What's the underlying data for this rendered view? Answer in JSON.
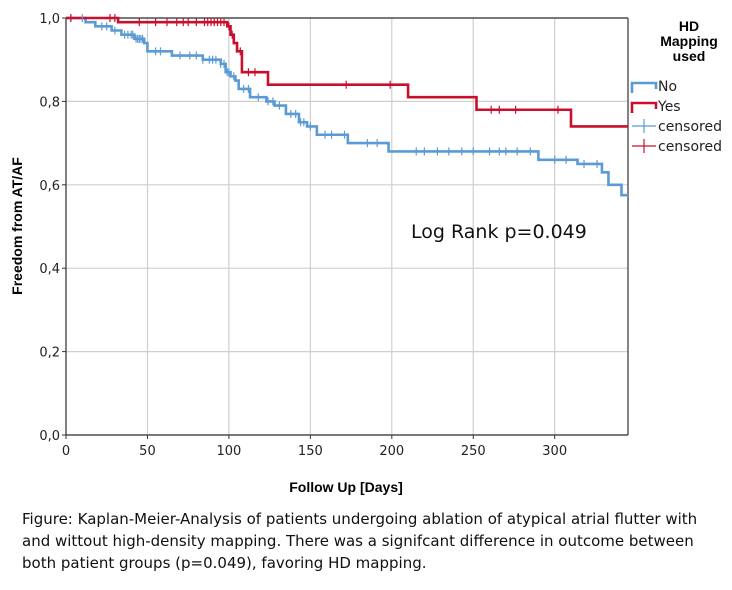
{
  "caption": "Figure: Kaplan-Meier-Analysis of patients undergoing ablation of atypical atrial flutter with and wittout high-density mapping. There was a signifcant difference in outcome between both patient groups (p=0.049), favoring HD mapping.",
  "chart_data": {
    "type": "line",
    "step": true,
    "title": "",
    "xlabel": "Follow Up [Days]",
    "ylabel": "Freedom from AT/AF",
    "xlim": [
      0,
      345
    ],
    "ylim": [
      0,
      1.0
    ],
    "xticks": [
      0,
      50,
      100,
      150,
      200,
      250,
      300
    ],
    "xtick_labels": [
      "0",
      "50",
      "100",
      "150",
      "200",
      "250",
      "300"
    ],
    "yticks": [
      0.0,
      0.2,
      0.4,
      0.6,
      0.8,
      1.0
    ],
    "ytick_labels": [
      "0,0",
      "0,2",
      "0,4",
      "0,6",
      "0,8",
      "1,0"
    ],
    "grid": true,
    "annotation": "Log Rank p=0.049",
    "legend": {
      "title_lines": [
        "HD",
        "Mapping",
        "used"
      ],
      "placement": "outside-right",
      "entries": [
        {
          "label": "No",
          "kind": "line",
          "series": 0
        },
        {
          "label": "Yes",
          "kind": "line",
          "series": 1
        },
        {
          "label": "censored",
          "kind": "censor",
          "series": 0
        },
        {
          "label": "censored",
          "kind": "censor",
          "series": 1
        }
      ]
    },
    "series": [
      {
        "label": "No",
        "color": "#5b9bd5",
        "points": [
          [
            0,
            1.0
          ],
          [
            12,
            0.99
          ],
          [
            18,
            0.98
          ],
          [
            28,
            0.97
          ],
          [
            34,
            0.96
          ],
          [
            42,
            0.95
          ],
          [
            48,
            0.94
          ],
          [
            50,
            0.92
          ],
          [
            65,
            0.91
          ],
          [
            84,
            0.9
          ],
          [
            95,
            0.89
          ],
          [
            98,
            0.87
          ],
          [
            101,
            0.86
          ],
          [
            104,
            0.85
          ],
          [
            106,
            0.83
          ],
          [
            113,
            0.81
          ],
          [
            123,
            0.8
          ],
          [
            128,
            0.79
          ],
          [
            135,
            0.77
          ],
          [
            143,
            0.75
          ],
          [
            148,
            0.74
          ],
          [
            154,
            0.72
          ],
          [
            173,
            0.7
          ],
          [
            198,
            0.68
          ],
          [
            290,
            0.66
          ],
          [
            314,
            0.65
          ],
          [
            329,
            0.63
          ],
          [
            333,
            0.6
          ],
          [
            341,
            0.575
          ],
          [
            345,
            0.575
          ]
        ],
        "censored": [
          3,
          10,
          22,
          25,
          30,
          36,
          38,
          40,
          41,
          43,
          44,
          45,
          46,
          47,
          55,
          58,
          70,
          76,
          80,
          84,
          88,
          90,
          92,
          95,
          97,
          99,
          100,
          103,
          109,
          112,
          118,
          124,
          127,
          131,
          138,
          141,
          144,
          146,
          150,
          159,
          163,
          171,
          185,
          191,
          215,
          220,
          228,
          235,
          243,
          250,
          260,
          266,
          270,
          277,
          285,
          300,
          307,
          318,
          326
        ]
      },
      {
        "label": "Yes",
        "color": "#c8102e",
        "points": [
          [
            0,
            1.0
          ],
          [
            32,
            0.99
          ],
          [
            99,
            0.98
          ],
          [
            101,
            0.96
          ],
          [
            103,
            0.94
          ],
          [
            105,
            0.92
          ],
          [
            108,
            0.87
          ],
          [
            124,
            0.84
          ],
          [
            210,
            0.81
          ],
          [
            252,
            0.78
          ],
          [
            310,
            0.74
          ],
          [
            345,
            0.74
          ]
        ],
        "censored": [
          3,
          27,
          30,
          45,
          55,
          62,
          68,
          72,
          75,
          80,
          85,
          87,
          89,
          91,
          93,
          95,
          97,
          100,
          102,
          107,
          112,
          116,
          172,
          199,
          261,
          266,
          276,
          302
        ]
      }
    ]
  }
}
